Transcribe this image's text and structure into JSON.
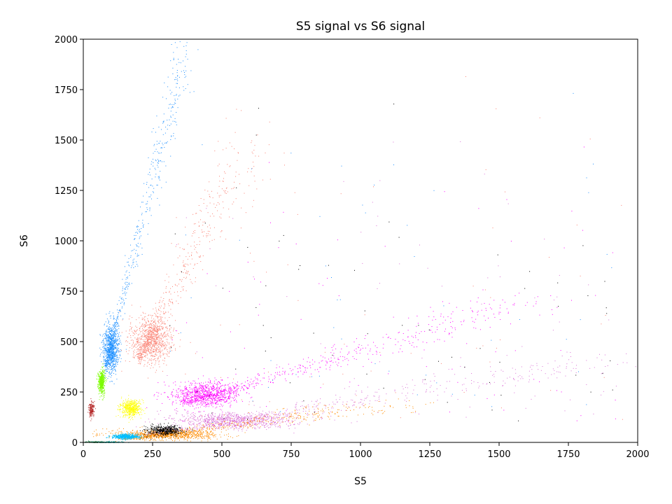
{
  "chart_data": {
    "type": "scatter",
    "title": "S5 signal vs S6 signal",
    "xlabel": "S5",
    "ylabel": "S6",
    "xlim": [
      0,
      2000
    ],
    "ylim": [
      0,
      2000
    ],
    "xticks": [
      0,
      250,
      500,
      750,
      1000,
      1250,
      1500,
      1750,
      2000
    ],
    "yticks": [
      0,
      250,
      500,
      750,
      1000,
      1250,
      1500,
      1750,
      2000
    ],
    "grid": false,
    "legend": "none",
    "clusters": [
      {
        "color": "#1e90ff",
        "center": [
          100,
          470
        ],
        "spread": [
          14,
          60
        ],
        "slope_from": [
          80,
          380
        ],
        "slope_to": [
          370,
          1950
        ],
        "density": "high"
      },
      {
        "color": "#fa8072",
        "center": [
          245,
          510
        ],
        "spread": [
          35,
          60
        ],
        "slope_from": [
          200,
          420
        ],
        "slope_to": [
          600,
          1500
        ],
        "density": "high"
      },
      {
        "color": "#ff00ff",
        "center": [
          440,
          240
        ],
        "spread": [
          60,
          30
        ],
        "slope_from": [
          370,
          200
        ],
        "slope_to": [
          1600,
          700
        ],
        "density": "high"
      },
      {
        "color": "#da70d6",
        "center": [
          550,
          110
        ],
        "spread": [
          110,
          20
        ],
        "slope_from": [
          250,
          40
        ],
        "slope_to": [
          1950,
          420
        ],
        "density": "high"
      },
      {
        "color": "#ff8c00",
        "center": [
          300,
          40
        ],
        "spread": [
          90,
          12
        ],
        "slope_from": [
          170,
          20
        ],
        "slope_to": [
          1100,
          190
        ],
        "density": "high"
      },
      {
        "color": "#000000",
        "center": [
          290,
          60
        ],
        "spread": [
          30,
          12
        ],
        "density": "medium"
      },
      {
        "color": "#ffff00",
        "center": [
          170,
          170
        ],
        "spread": [
          20,
          20
        ],
        "density": "medium"
      },
      {
        "color": "#7cfc00",
        "center": [
          65,
          300
        ],
        "spread": [
          6,
          30
        ],
        "density": "medium"
      },
      {
        "color": "#b22222",
        "center": [
          28,
          165
        ],
        "spread": [
          5,
          20
        ],
        "density": "low"
      },
      {
        "color": "#00bfff",
        "center": [
          150,
          30
        ],
        "spread": [
          25,
          6
        ],
        "density": "medium"
      },
      {
        "color": "#2e8b57",
        "center": [
          40,
          3
        ],
        "spread": [
          20,
          2
        ],
        "density": "low"
      },
      {
        "color": "#20b2aa",
        "center": [
          100,
          2
        ],
        "spread": [
          25,
          2
        ],
        "density": "low"
      }
    ]
  }
}
